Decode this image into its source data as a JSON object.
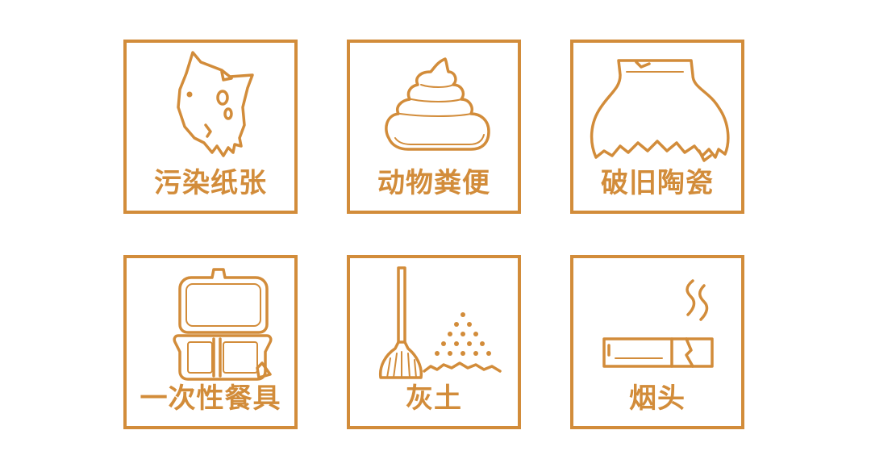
{
  "accent_color": "#d28c3a",
  "items": [
    {
      "label": "污染纸张",
      "icon": "soiled-paper-icon"
    },
    {
      "label": "动物粪便",
      "icon": "animal-feces-icon"
    },
    {
      "label": "破旧陶瓷",
      "icon": "broken-ceramic-icon"
    },
    {
      "label": "一次性餐具",
      "icon": "disposable-tableware-icon"
    },
    {
      "label": "灰土",
      "icon": "dust-and-broom-icon"
    },
    {
      "label": "烟头",
      "icon": "cigarette-butt-icon"
    }
  ]
}
